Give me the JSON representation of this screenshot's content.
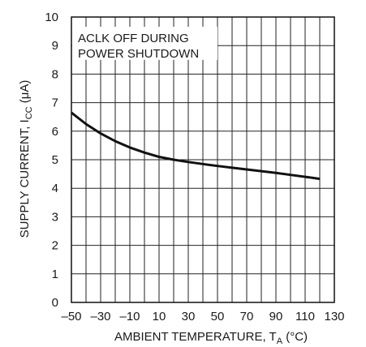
{
  "chart_data": {
    "type": "line",
    "xlabel": "AMBIENT TEMPERATURE, T",
    "xlabel_sub": "A",
    "xlabel_unit": " (°C)",
    "ylabel": "SUPPLY CURRENT, I",
    "ylabel_sub": "CC",
    "ylabel_unit": " (μA)",
    "xlim": [
      -50,
      130
    ],
    "ylim": [
      0,
      10
    ],
    "x_ticks": [
      -50,
      -30,
      -10,
      10,
      30,
      50,
      70,
      90,
      110,
      130
    ],
    "x_tick_labels": [
      "–50",
      "–30",
      "–10",
      "10",
      "30",
      "50",
      "70",
      "90",
      "110",
      "130"
    ],
    "y_ticks": [
      0,
      1,
      2,
      3,
      4,
      5,
      6,
      7,
      8,
      9,
      10
    ],
    "y_tick_labels": [
      "0",
      "1",
      "2",
      "3",
      "4",
      "5",
      "6",
      "7",
      "8",
      "9",
      "10"
    ],
    "grid": true,
    "annotation_lines": [
      "ACLK OFF DURING",
      "POWER SHUTDOWN"
    ],
    "series": [
      {
        "x": [
          -50,
          -40,
          -30,
          -20,
          -10,
          0,
          10,
          20,
          30,
          40,
          50,
          60,
          70,
          80,
          90,
          100,
          110,
          120
        ],
        "values": [
          6.65,
          6.25,
          5.92,
          5.65,
          5.43,
          5.25,
          5.1,
          5.0,
          4.92,
          4.85,
          4.78,
          4.72,
          4.66,
          4.6,
          4.54,
          4.47,
          4.4,
          4.33
        ]
      }
    ]
  }
}
